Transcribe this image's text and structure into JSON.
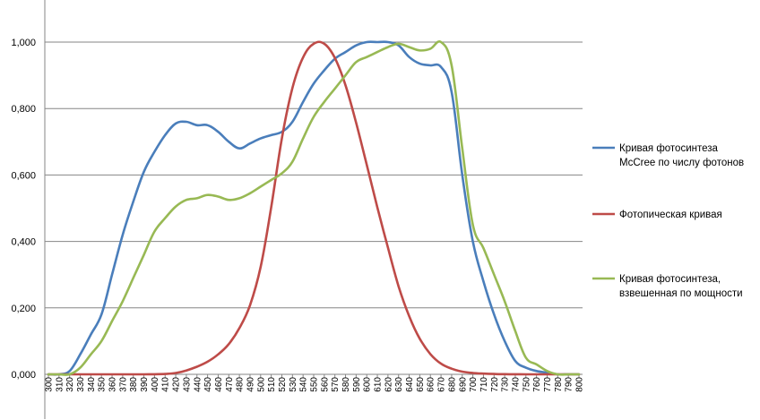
{
  "chart_data": {
    "type": "line",
    "title": "",
    "xlabel": "",
    "ylabel": "",
    "ylim": [
      0,
      1
    ],
    "xlim": [
      300,
      800
    ],
    "grid": "horizontal",
    "legend_position": "right",
    "y_ticks": [
      "0,000",
      "0,200",
      "0,400",
      "0,600",
      "0,800",
      "1,000"
    ],
    "x_ticks": [
      "300",
      "310",
      "320",
      "330",
      "340",
      "350",
      "360",
      "370",
      "380",
      "390",
      "400",
      "410",
      "420",
      "430",
      "440",
      "450",
      "460",
      "470",
      "480",
      "490",
      "500",
      "510",
      "520",
      "530",
      "540",
      "550",
      "560",
      "570",
      "580",
      "590",
      "600",
      "610",
      "620",
      "630",
      "640",
      "650",
      "660",
      "670",
      "680",
      "690",
      "700",
      "710",
      "720",
      "730",
      "740",
      "750",
      "760",
      "770",
      "780",
      "790",
      "800"
    ],
    "series": [
      {
        "name": "Кривая фотосинтеза McCree по числу фотонов",
        "color": "#4A7EBB",
        "x": [
          300,
          310,
          320,
          330,
          340,
          350,
          360,
          370,
          380,
          390,
          400,
          410,
          420,
          430,
          440,
          450,
          460,
          470,
          480,
          490,
          500,
          510,
          520,
          530,
          540,
          550,
          560,
          570,
          580,
          590,
          600,
          610,
          620,
          630,
          640,
          650,
          660,
          670,
          680,
          690,
          700,
          710,
          720,
          730,
          740,
          750,
          760,
          770,
          780,
          790,
          800
        ],
        "values": [
          0,
          0,
          0.01,
          0.06,
          0.12,
          0.18,
          0.3,
          0.42,
          0.52,
          0.61,
          0.67,
          0.72,
          0.755,
          0.76,
          0.75,
          0.75,
          0.73,
          0.7,
          0.68,
          0.695,
          0.71,
          0.72,
          0.73,
          0.76,
          0.82,
          0.875,
          0.915,
          0.95,
          0.97,
          0.99,
          1.0,
          1.0,
          1.0,
          0.99,
          0.955,
          0.935,
          0.93,
          0.925,
          0.85,
          0.6,
          0.4,
          0.28,
          0.18,
          0.1,
          0.04,
          0.02,
          0.01,
          0.005,
          0,
          0,
          0
        ]
      },
      {
        "name": "Фотопическая кривая",
        "color": "#BE4B48",
        "x": [
          300,
          310,
          320,
          330,
          340,
          350,
          360,
          370,
          380,
          390,
          400,
          410,
          420,
          430,
          440,
          450,
          460,
          470,
          480,
          490,
          500,
          510,
          520,
          530,
          540,
          550,
          560,
          570,
          580,
          590,
          600,
          610,
          620,
          630,
          640,
          650,
          660,
          670,
          680,
          690,
          700,
          710,
          720,
          730,
          740,
          750,
          760,
          770,
          780,
          790,
          800
        ],
        "values": [
          0,
          0,
          0,
          0,
          0,
          0,
          0,
          0,
          0,
          0,
          0.0004,
          0.0012,
          0.004,
          0.0116,
          0.023,
          0.038,
          0.06,
          0.091,
          0.139,
          0.208,
          0.323,
          0.503,
          0.71,
          0.862,
          0.954,
          0.995,
          0.995,
          0.952,
          0.87,
          0.757,
          0.631,
          0.503,
          0.381,
          0.265,
          0.175,
          0.107,
          0.061,
          0.032,
          0.017,
          0.0082,
          0.0041,
          0.0021,
          0.001,
          0.0005,
          0.0002,
          0.0001,
          0,
          0,
          0,
          0,
          0
        ]
      },
      {
        "name": "Кривая фотосинтеза, взвешенная по мощности",
        "color": "#98B954",
        "x": [
          300,
          310,
          320,
          330,
          340,
          350,
          360,
          370,
          380,
          390,
          400,
          410,
          420,
          430,
          440,
          450,
          460,
          470,
          480,
          490,
          500,
          510,
          520,
          530,
          540,
          550,
          560,
          570,
          580,
          590,
          600,
          610,
          620,
          630,
          640,
          650,
          660,
          670,
          680,
          690,
          700,
          710,
          720,
          730,
          740,
          750,
          760,
          770,
          780,
          790,
          800
        ],
        "values": [
          0,
          0,
          0,
          0.02,
          0.06,
          0.1,
          0.16,
          0.22,
          0.29,
          0.36,
          0.43,
          0.47,
          0.505,
          0.525,
          0.53,
          0.54,
          0.535,
          0.525,
          0.53,
          0.545,
          0.565,
          0.585,
          0.605,
          0.64,
          0.71,
          0.775,
          0.82,
          0.86,
          0.9,
          0.94,
          0.955,
          0.97,
          0.985,
          0.995,
          0.985,
          0.975,
          0.98,
          1.0,
          0.93,
          0.68,
          0.45,
          0.38,
          0.3,
          0.22,
          0.13,
          0.05,
          0.03,
          0.01,
          0,
          0,
          0
        ]
      }
    ],
    "legend": [
      {
        "line1": "Кривая фотосинтеза",
        "line2": "McCree по числу фотонов"
      },
      {
        "line1": "Фотопическая кривая",
        "line2": ""
      },
      {
        "line1": "Кривая фотосинтеза,",
        "line2": "взвешенная  по мощности"
      }
    ]
  }
}
